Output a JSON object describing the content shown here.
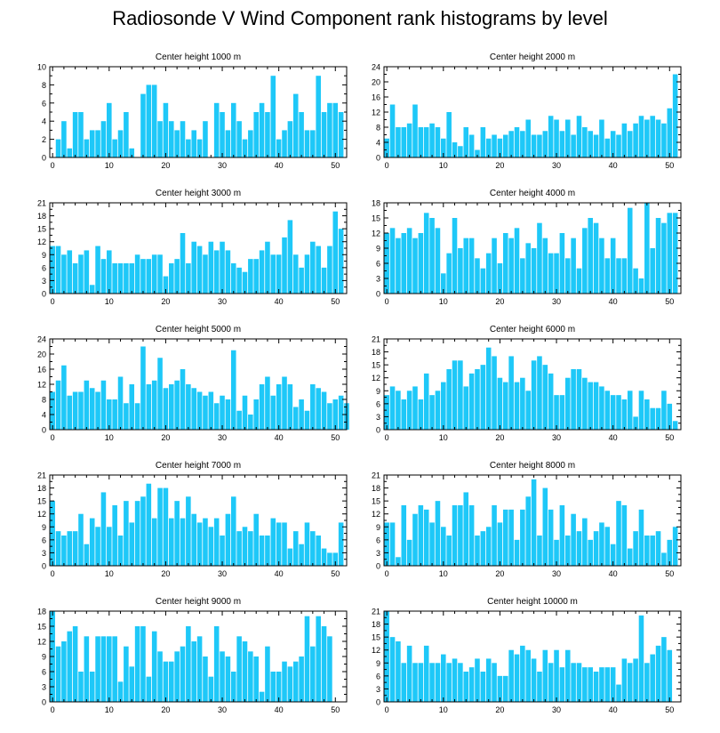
{
  "title": "Radiosonde V Wind Component rank histograms by level",
  "colors": {
    "bar": "#1ec8f8",
    "bar_edge": "#ffffff",
    "axis": "#000000"
  },
  "chart_data": [
    {
      "type": "bar",
      "title": "Center height 1000 m",
      "ylim": [
        0,
        10
      ],
      "yticks": [
        0,
        2,
        4,
        6,
        8,
        10
      ],
      "xticks": [
        0,
        10,
        20,
        30,
        40,
        50
      ],
      "x_start": 0,
      "values": [
        0,
        2,
        4,
        1,
        5,
        5,
        2,
        3,
        3,
        4,
        6,
        2,
        3,
        5,
        1,
        0,
        7,
        8,
        8,
        4,
        6,
        4,
        3,
        4,
        2,
        3,
        2,
        4,
        0,
        6,
        5,
        3,
        6,
        4,
        2,
        3,
        5,
        6,
        5,
        9,
        2,
        3,
        4,
        7,
        5,
        3,
        3,
        9,
        5,
        6,
        6,
        5
      ]
    },
    {
      "type": "bar",
      "title": "Center height 2000 m",
      "ylim": [
        0,
        24
      ],
      "yticks": [
        0,
        4,
        8,
        12,
        16,
        20,
        24
      ],
      "xticks": [
        0,
        10,
        20,
        30,
        40,
        50
      ],
      "x_start": 0,
      "values": [
        5,
        14,
        8,
        8,
        9,
        14,
        8,
        8,
        9,
        8,
        5,
        12,
        4,
        3,
        8,
        6,
        2,
        8,
        5,
        6,
        5,
        6,
        7,
        8,
        7,
        10,
        6,
        6,
        7,
        11,
        10,
        7,
        10,
        6,
        11,
        8,
        7,
        6,
        10,
        5,
        7,
        6,
        9,
        7,
        9,
        11,
        10,
        11,
        10,
        9,
        13,
        22
      ]
    },
    {
      "type": "bar",
      "title": "Center height 3000 m",
      "ylim": [
        0,
        21
      ],
      "yticks": [
        0,
        3,
        6,
        9,
        12,
        15,
        18,
        21
      ],
      "xticks": [
        0,
        10,
        20,
        30,
        40,
        50
      ],
      "x_start": 0,
      "values": [
        11,
        11,
        9,
        10,
        7,
        9,
        10,
        2,
        11,
        8,
        10,
        7,
        7,
        7,
        7,
        9,
        8,
        8,
        9,
        9,
        4,
        7,
        8,
        14,
        7,
        12,
        11,
        9,
        12,
        10,
        12,
        10,
        7,
        6,
        5,
        8,
        8,
        10,
        12,
        9,
        9,
        13,
        17,
        9,
        6,
        9,
        12,
        11,
        6,
        11,
        19,
        15
      ]
    },
    {
      "type": "bar",
      "title": "Center height 4000 m",
      "ylim": [
        0,
        18
      ],
      "yticks": [
        0,
        3,
        6,
        9,
        12,
        15,
        18
      ],
      "xticks": [
        0,
        10,
        20,
        30,
        40,
        50
      ],
      "x_start": 0,
      "values": [
        12,
        13,
        11,
        12,
        13,
        11,
        12,
        16,
        15,
        13,
        4,
        8,
        15,
        9,
        11,
        11,
        7,
        5,
        8,
        11,
        6,
        12,
        11,
        13,
        7,
        10,
        9,
        14,
        11,
        8,
        8,
        12,
        7,
        11,
        5,
        13,
        15,
        14,
        11,
        7,
        11,
        7,
        7,
        17,
        5,
        3,
        18,
        9,
        15,
        14,
        16,
        16
      ]
    },
    {
      "type": "bar",
      "title": "Center height 5000 m",
      "ylim": [
        0,
        24
      ],
      "yticks": [
        0,
        4,
        8,
        12,
        16,
        20,
        24
      ],
      "xticks": [
        0,
        10,
        20,
        30,
        40,
        50
      ],
      "x_start": 0,
      "values": [
        10,
        13,
        17,
        9,
        10,
        10,
        13,
        11,
        10,
        13,
        8,
        8,
        14,
        7,
        12,
        7,
        22,
        12,
        13,
        19,
        11,
        12,
        13,
        16,
        12,
        11,
        10,
        9,
        10,
        7,
        9,
        8,
        21,
        5,
        9,
        4,
        8,
        12,
        14,
        9,
        12,
        14,
        12,
        6,
        8,
        5,
        12,
        11,
        10,
        7,
        8,
        9,
        7
      ]
    },
    {
      "type": "bar",
      "title": "Center height 6000 m",
      "ylim": [
        0,
        21
      ],
      "yticks": [
        0,
        3,
        6,
        9,
        12,
        15,
        18,
        21
      ],
      "xticks": [
        0,
        10,
        20,
        30,
        40,
        50
      ],
      "x_start": 0,
      "values": [
        8,
        10,
        9,
        7,
        9,
        10,
        7,
        13,
        8,
        9,
        11,
        14,
        16,
        16,
        10,
        13,
        14,
        15,
        19,
        17,
        12,
        11,
        17,
        11,
        12,
        9,
        16,
        17,
        15,
        13,
        8,
        8,
        12,
        14,
        14,
        12,
        11,
        11,
        10,
        9,
        8,
        8,
        7,
        9,
        3,
        9,
        7,
        5,
        5,
        9,
        6,
        2
      ]
    },
    {
      "type": "bar",
      "title": "Center height 7000 m",
      "ylim": [
        0,
        21
      ],
      "yticks": [
        0,
        3,
        6,
        9,
        12,
        15,
        18,
        21
      ],
      "xticks": [
        0,
        10,
        20,
        30,
        40,
        50
      ],
      "x_start": 0,
      "values": [
        15,
        8,
        7,
        8,
        8,
        12,
        5,
        11,
        9,
        17,
        9,
        14,
        7,
        15,
        10,
        15,
        16,
        19,
        11,
        18,
        18,
        11,
        15,
        11,
        16,
        12,
        10,
        11,
        9,
        11,
        7,
        12,
        16,
        8,
        9,
        8,
        12,
        7,
        7,
        11,
        10,
        10,
        4,
        8,
        5,
        10,
        8,
        7,
        4,
        3,
        3,
        10
      ]
    },
    {
      "type": "bar",
      "title": "Center height 8000 m",
      "ylim": [
        0,
        21
      ],
      "yticks": [
        0,
        3,
        6,
        9,
        12,
        15,
        18,
        21
      ],
      "xticks": [
        0,
        10,
        20,
        30,
        40,
        50
      ],
      "x_start": 0,
      "values": [
        10,
        10,
        2,
        14,
        6,
        12,
        14,
        13,
        10,
        15,
        9,
        7,
        14,
        14,
        17,
        14,
        7,
        8,
        9,
        14,
        10,
        13,
        13,
        6,
        13,
        16,
        20,
        7,
        18,
        13,
        6,
        14,
        7,
        12,
        8,
        11,
        6,
        8,
        10,
        9,
        5,
        15,
        14,
        4,
        8,
        13,
        7,
        7,
        8,
        3,
        6,
        9
      ]
    },
    {
      "type": "bar",
      "title": "Center height 9000 m",
      "ylim": [
        0,
        18
      ],
      "yticks": [
        0,
        3,
        6,
        9,
        12,
        15,
        18
      ],
      "xticks": [
        0,
        10,
        20,
        30,
        40,
        50
      ],
      "x_start": 0,
      "values": [
        18,
        11,
        12,
        14,
        15,
        6,
        13,
        6,
        13,
        13,
        13,
        13,
        4,
        11,
        7,
        15,
        15,
        5,
        14,
        10,
        8,
        8,
        10,
        11,
        15,
        12,
        13,
        9,
        5,
        15,
        10,
        9,
        6,
        13,
        12,
        10,
        9,
        2,
        11,
        6,
        6,
        8,
        7,
        8,
        9,
        17,
        11,
        17,
        15,
        13,
        0,
        0
      ]
    },
    {
      "type": "bar",
      "title": "Center height 10000 m",
      "ylim": [
        0,
        21
      ],
      "yticks": [
        0,
        3,
        6,
        9,
        12,
        15,
        18,
        21
      ],
      "xticks": [
        0,
        10,
        20,
        30,
        40,
        50
      ],
      "x_start": 0,
      "values": [
        21,
        15,
        14,
        9,
        13,
        9,
        9,
        13,
        9,
        9,
        11,
        9,
        10,
        9,
        7,
        8,
        10,
        7,
        10,
        9,
        6,
        6,
        12,
        11,
        13,
        12,
        10,
        7,
        12,
        9,
        12,
        8,
        12,
        9,
        9,
        8,
        8,
        7,
        8,
        8,
        8,
        4,
        10,
        9,
        10,
        20,
        9,
        11,
        13,
        15,
        12,
        0
      ]
    }
  ]
}
